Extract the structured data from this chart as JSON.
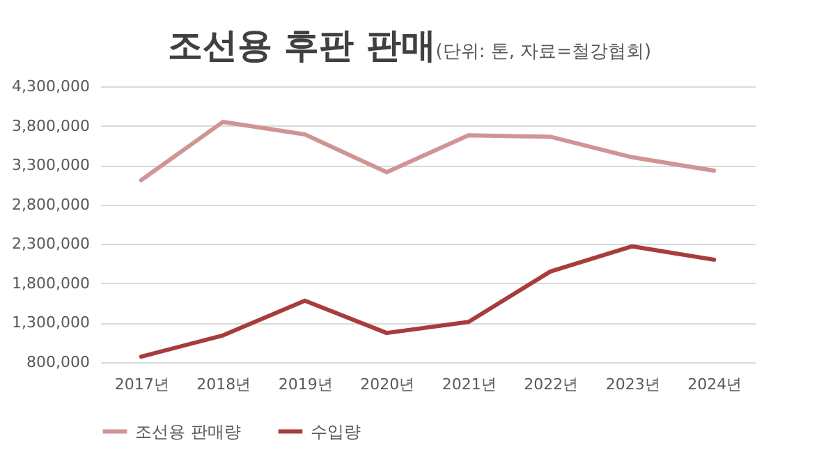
{
  "chart_data": {
    "type": "line",
    "title": "조선용 후판 판매",
    "subtitle": "(단위: 톤, 자료=철강협회)",
    "categories": [
      "2017년",
      "2018년",
      "2019년",
      "2020년",
      "2021년",
      "2022년",
      "2023년",
      "2024년"
    ],
    "series": [
      {
        "name": "조선용 판매량",
        "color": "#d09494",
        "values": [
          3110000,
          3850000,
          3690000,
          3210000,
          3680000,
          3660000,
          3400000,
          3230000
        ]
      },
      {
        "name": "수입량",
        "color": "#a83c3c",
        "values": [
          870000,
          1140000,
          1580000,
          1170000,
          1310000,
          1950000,
          2270000,
          2100000
        ]
      }
    ],
    "ylim": [
      800000,
      4300000
    ],
    "yticks": [
      {
        "value": 800000,
        "label": "800,000"
      },
      {
        "value": 1300000,
        "label": "1,300,000"
      },
      {
        "value": 1800000,
        "label": "1,800,000"
      },
      {
        "value": 2300000,
        "label": "2,300,000"
      },
      {
        "value": 2800000,
        "label": "2,800,000"
      },
      {
        "value": 3300000,
        "label": "3,300,000"
      },
      {
        "value": 3800000,
        "label": "3,800,000"
      },
      {
        "value": 4300000,
        "label": "4,300,000"
      }
    ],
    "grid": "y",
    "legend": "bottom",
    "marker": "none",
    "line_style": "solid"
  }
}
